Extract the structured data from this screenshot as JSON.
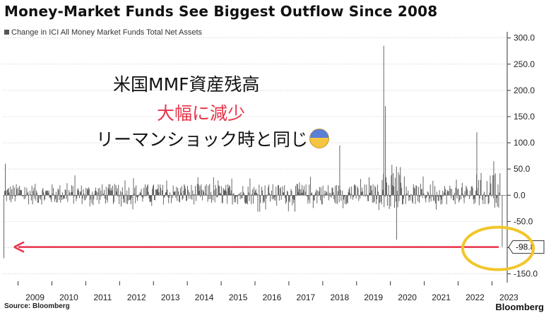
{
  "title": "Money-Market Funds See Biggest Outflow Since 2008",
  "legend_label": "Change in ICI All Money Market Funds Total Net Assets",
  "source": "Source: Bloomberg",
  "brand": "Bloomberg",
  "annotations": {
    "line1": "米国MMF資産残高",
    "line2": "大幅に減少",
    "line3": "リーマンショック時と同じ",
    "emoji": "anxious-face-emoji",
    "highlight_color": "#e8334a",
    "circle_color": "#f2c62b"
  },
  "chart_data": {
    "type": "bar",
    "title": "Money-Market Funds See Biggest Outflow Since 2008",
    "series": [
      {
        "name": "Change in ICI All Money Market Funds Total Net Assets"
      }
    ],
    "x_tick_labels": [
      "2009",
      "2010",
      "2011",
      "2012",
      "2013",
      "2014",
      "2015",
      "2016",
      "2017",
      "2018",
      "2019",
      "2020",
      "2021",
      "2022",
      "2023"
    ],
    "y_tick_labels": [
      "300.0",
      "250.0",
      "200.0",
      "150.0",
      "100.0",
      "50.0",
      "0.0",
      "-50.0",
      "-100.0",
      "-150.0"
    ],
    "ylim": [
      -160,
      305
    ],
    "xlim": [
      2008.55,
      2023.45
    ],
    "y_axis_side": "right",
    "grid": "horizontal dotted",
    "last_value": -98.8,
    "last_value_label": "-98.8",
    "notable_points": [
      {
        "x": 2008.58,
        "y": -120
      },
      {
        "x": 2008.62,
        "y": 60
      },
      {
        "x": 2018.5,
        "y": 95
      },
      {
        "x": 2019.8,
        "y": 285
      },
      {
        "x": 2019.85,
        "y": 170
      },
      {
        "x": 2020.18,
        "y": -85
      },
      {
        "x": 2022.55,
        "y": 120
      },
      {
        "x": 2023.05,
        "y": 65
      },
      {
        "x": 2023.3,
        "y": -98.8
      }
    ],
    "bar_color": "#555555"
  }
}
